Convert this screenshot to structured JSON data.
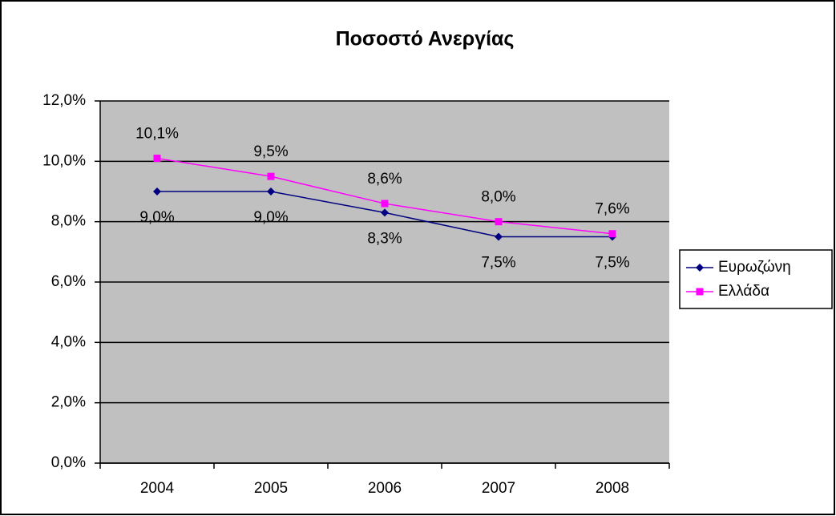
{
  "chart_data": {
    "type": "line",
    "title": "Ποσοστό Ανεργίας",
    "categories": [
      "2004",
      "2005",
      "2006",
      "2007",
      "2008"
    ],
    "series": [
      {
        "name": "Ευρωζώνη",
        "color": "#000080",
        "marker": "diamond",
        "values": [
          9.0,
          9.0,
          8.3,
          7.5,
          7.5
        ],
        "value_labels": [
          "9,0%",
          "9,0%",
          "8,3%",
          "7,5%",
          "7,5%"
        ]
      },
      {
        "name": "Ελλάδα",
        "color": "#ff00ff",
        "marker": "square",
        "values": [
          10.1,
          9.5,
          8.6,
          8.0,
          7.6
        ],
        "value_labels": [
          "10,1%",
          "9,5%",
          "8,6%",
          "8,0%",
          "7,6%"
        ]
      }
    ],
    "ylim": [
      0,
      12
    ],
    "yticks": [
      {
        "value": 0,
        "label": "0,0%"
      },
      {
        "value": 2,
        "label": "2,0%"
      },
      {
        "value": 4,
        "label": "4,0%"
      },
      {
        "value": 6,
        "label": "6,0%"
      },
      {
        "value": 8,
        "label": "8,0%"
      },
      {
        "value": 10,
        "label": "10,0%"
      },
      {
        "value": 12,
        "label": "12,0%"
      }
    ],
    "grid": true,
    "legend": "right",
    "plot_background": "#c0c0c0"
  }
}
